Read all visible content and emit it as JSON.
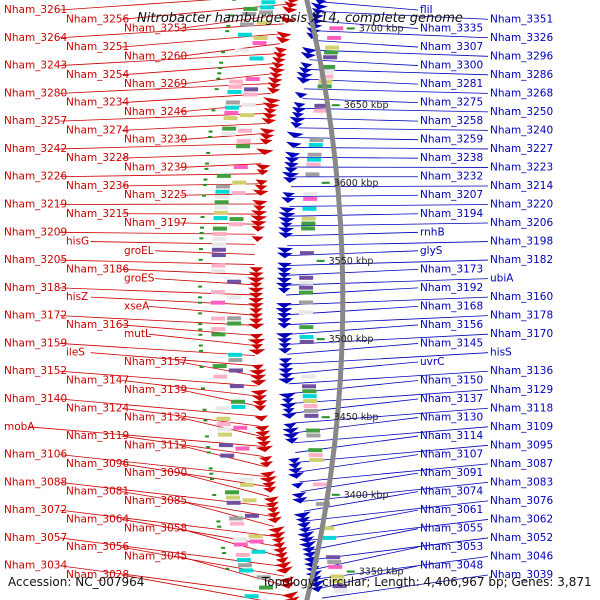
{
  "title": "Nitrobacter hamburgensis X14, complete genome",
  "footer": {
    "accession": "Accession: NC_007964",
    "topology": "Topology: circular; Length: 4,406,967 bp; Genes: 3,871"
  },
  "colors": {
    "forward_strand": "#cc0000",
    "reverse_strand": "#0000bb",
    "arc": "#888888",
    "feature_palette": [
      "#00d8d8",
      "#ffb0c8",
      "#a0a0a0",
      "#d0d070",
      "#7050a0",
      "#ff60c0",
      "#40a040",
      "#e8e8e8"
    ]
  },
  "ruler": [
    "3700 kbp",
    "3650 kbp",
    "3600 kbp",
    "3550 kbp",
    "3500 kbp",
    "3450 kbp",
    "3400 kbp",
    "3350 kbp"
  ],
  "left_labels": [
    "Nham_3261",
    "Nham_3256",
    "Nham_3253",
    "Nham_3264",
    "Nham_3251",
    "Nham_3260",
    "Nham_3243",
    "Nham_3254",
    "Nham_3269",
    "Nham_3280",
    "Nham_3234",
    "Nham_3246",
    "Nham_3257",
    "Nham_3274",
    "Nham_3230",
    "Nham_3242",
    "Nham_3228",
    "Nham_3239",
    "Nham_3226",
    "Nham_3236",
    "Nham_3225",
    "Nham_3219",
    "Nham_3215",
    "Nham_3197",
    "Nham_3209",
    "hisG",
    "groEL",
    "Nham_3205",
    "Nham_3186",
    "groES",
    "Nham_3183",
    "hisZ",
    "xseA",
    "Nham_3172",
    "Nham_3163",
    "mutL",
    "Nham_3159",
    "ileS",
    "Nham_3157",
    "Nham_3152",
    "Nham_3147",
    "Nham_3139",
    "Nham_3140",
    "Nham_3124",
    "Nham_3132",
    "mobA",
    "Nham_3119",
    "Nham_3112",
    "Nham_3106",
    "Nham_3096",
    "Nham_3090",
    "Nham_3088",
    "Nham_3081",
    "Nham_3085",
    "Nham_3072",
    "Nham_3064",
    "Nham_3058",
    "Nham_3057",
    "Nham_3056",
    "Nham_3045",
    "Nham_3034",
    "Nham_3028"
  ],
  "right_labels": [
    "fliI",
    "Nham_3351",
    "Nham_3335",
    "Nham_3326",
    "Nham_3307",
    "Nham_3296",
    "Nham_3300",
    "Nham_3286",
    "Nham_3281",
    "Nham_3268",
    "Nham_3275",
    "Nham_3250",
    "Nham_3258",
    "Nham_3240",
    "Nham_3259",
    "Nham_3227",
    "Nham_3238",
    "Nham_3223",
    "Nham_3232",
    "Nham_3214",
    "Nham_3207",
    "Nham_3220",
    "Nham_3194",
    "Nham_3206",
    "rnhB",
    "Nham_3198",
    "glyS",
    "Nham_3182",
    "Nham_3173",
    "ubiA",
    "Nham_3192",
    "Nham_3160",
    "Nham_3168",
    "Nham_3178",
    "Nham_3156",
    "Nham_3170",
    "Nham_3145",
    "hisS",
    "uvrC",
    "Nham_3136",
    "Nham_3150",
    "Nham_3129",
    "Nham_3137",
    "Nham_3118",
    "Nham_3130",
    "Nham_3109",
    "Nham_3114",
    "Nham_3095",
    "Nham_3107",
    "Nham_3087",
    "Nham_3091",
    "Nham_3083",
    "Nham_3074",
    "Nham_3076",
    "Nham_3061",
    "Nham_3062",
    "Nham_3055",
    "Nham_3052",
    "Nham_3053",
    "Nham_3046",
    "Nham_3048",
    "Nham_3039"
  ]
}
